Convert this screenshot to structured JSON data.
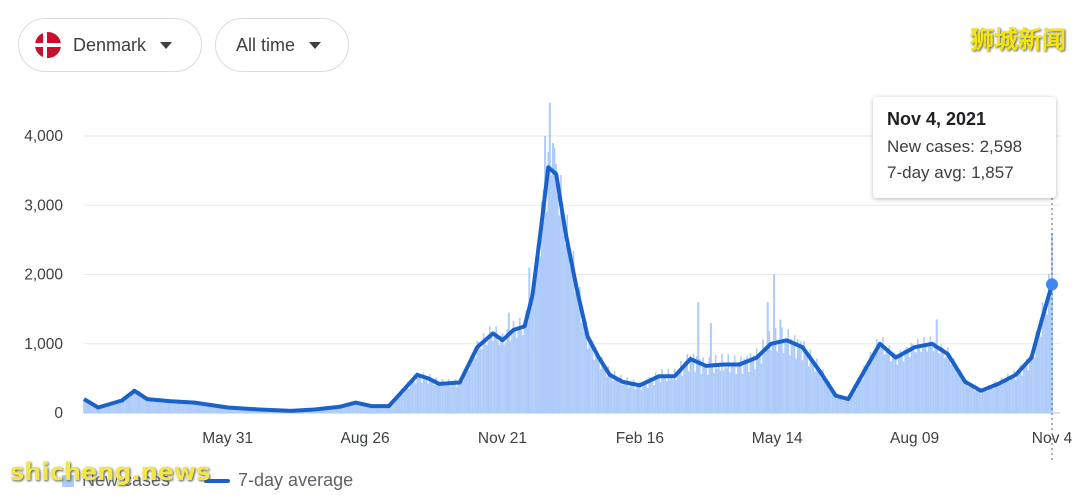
{
  "filters": {
    "country": {
      "label": "Denmark"
    },
    "time_range": {
      "label": "All time"
    }
  },
  "watermarks": {
    "top_right": "狮城新闻",
    "bottom_left": "shicheng.news"
  },
  "tooltip": {
    "date": "Nov 4, 2021",
    "new_cases": "New cases: 2,598",
    "avg": "7-day avg: 1,857"
  },
  "legend": {
    "bars": "New cases",
    "line": "7-day average"
  },
  "colors": {
    "bars": "#aecbfa",
    "line": "#1a62c9",
    "grid": "#e8eaed"
  },
  "chart_data": {
    "type": "bar",
    "ylim": [
      0,
      4000
    ],
    "y_ticks": [
      {
        "v": 0,
        "label": "0"
      },
      {
        "v": 1000,
        "label": "1,000"
      },
      {
        "v": 2000,
        "label": "2,000"
      },
      {
        "v": 3000,
        "label": "3,000"
      },
      {
        "v": 4000,
        "label": "4,000"
      }
    ],
    "x_start": "2020-03-01",
    "x_end": "2021-11-04",
    "x_ticks": [
      {
        "date": "2020-05-31",
        "label": "May 31"
      },
      {
        "date": "2020-08-26",
        "label": "Aug 26"
      },
      {
        "date": "2020-11-21",
        "label": "Nov 21"
      },
      {
        "date": "2021-02-16",
        "label": "Feb 16"
      },
      {
        "date": "2021-05-14",
        "label": "May 14"
      },
      {
        "date": "2021-08-09",
        "label": "Aug 09"
      },
      {
        "date": "2021-11-04",
        "label": "Nov 4"
      }
    ],
    "series": [
      {
        "name": "7-day average",
        "points": [
          [
            "2020-03-01",
            200
          ],
          [
            "2020-03-10",
            80
          ],
          [
            "2020-03-25",
            180
          ],
          [
            "2020-04-02",
            320
          ],
          [
            "2020-04-10",
            200
          ],
          [
            "2020-04-25",
            170
          ],
          [
            "2020-05-10",
            150
          ],
          [
            "2020-05-31",
            80
          ],
          [
            "2020-06-20",
            50
          ],
          [
            "2020-07-10",
            30
          ],
          [
            "2020-07-25",
            50
          ],
          [
            "2020-08-10",
            90
          ],
          [
            "2020-08-20",
            150
          ],
          [
            "2020-08-30",
            100
          ],
          [
            "2020-09-10",
            100
          ],
          [
            "2020-09-20",
            350
          ],
          [
            "2020-09-28",
            550
          ],
          [
            "2020-10-05",
            500
          ],
          [
            "2020-10-12",
            420
          ],
          [
            "2020-10-25",
            440
          ],
          [
            "2020-11-05",
            950
          ],
          [
            "2020-11-15",
            1150
          ],
          [
            "2020-11-21",
            1050
          ],
          [
            "2020-11-28",
            1200
          ],
          [
            "2020-12-05",
            1250
          ],
          [
            "2020-12-10",
            1700
          ],
          [
            "2020-12-15",
            2600
          ],
          [
            "2020-12-20",
            3550
          ],
          [
            "2020-12-25",
            3450
          ],
          [
            "2020-12-31",
            2600
          ],
          [
            "2021-01-07",
            1800
          ],
          [
            "2021-01-14",
            1100
          ],
          [
            "2021-01-21",
            800
          ],
          [
            "2021-01-28",
            550
          ],
          [
            "2021-02-05",
            450
          ],
          [
            "2021-02-16",
            400
          ],
          [
            "2021-02-28",
            530
          ],
          [
            "2021-03-10",
            530
          ],
          [
            "2021-03-20",
            780
          ],
          [
            "2021-03-30",
            680
          ],
          [
            "2021-04-10",
            700
          ],
          [
            "2021-04-20",
            700
          ],
          [
            "2021-05-01",
            800
          ],
          [
            "2021-05-10",
            1000
          ],
          [
            "2021-05-20",
            1050
          ],
          [
            "2021-05-30",
            950
          ],
          [
            "2021-06-10",
            600
          ],
          [
            "2021-06-20",
            250
          ],
          [
            "2021-06-28",
            200
          ],
          [
            "2021-07-08",
            600
          ],
          [
            "2021-07-18",
            1000
          ],
          [
            "2021-07-28",
            800
          ],
          [
            "2021-08-09",
            950
          ],
          [
            "2021-08-20",
            1000
          ],
          [
            "2021-08-30",
            850
          ],
          [
            "2021-09-10",
            450
          ],
          [
            "2021-09-20",
            320
          ],
          [
            "2021-10-01",
            420
          ],
          [
            "2021-10-12",
            550
          ],
          [
            "2021-10-22",
            800
          ],
          [
            "2021-10-28",
            1300
          ],
          [
            "2021-11-04",
            1857
          ]
        ]
      },
      {
        "name": "New cases",
        "spikes": [
          [
            "2020-11-25",
            1450
          ],
          [
            "2020-12-08",
            2100
          ],
          [
            "2020-12-16",
            3050
          ],
          [
            "2020-12-18",
            4000
          ],
          [
            "2020-12-21",
            4480
          ],
          [
            "2020-12-23",
            3900
          ],
          [
            "2021-01-08",
            1800
          ],
          [
            "2021-03-25",
            1600
          ],
          [
            "2021-04-02",
            1300
          ],
          [
            "2021-05-08",
            1600
          ],
          [
            "2021-05-12",
            2000
          ],
          [
            "2021-05-16",
            1350
          ],
          [
            "2021-08-23",
            1350
          ],
          [
            "2021-11-04",
            2598
          ]
        ]
      }
    ]
  }
}
